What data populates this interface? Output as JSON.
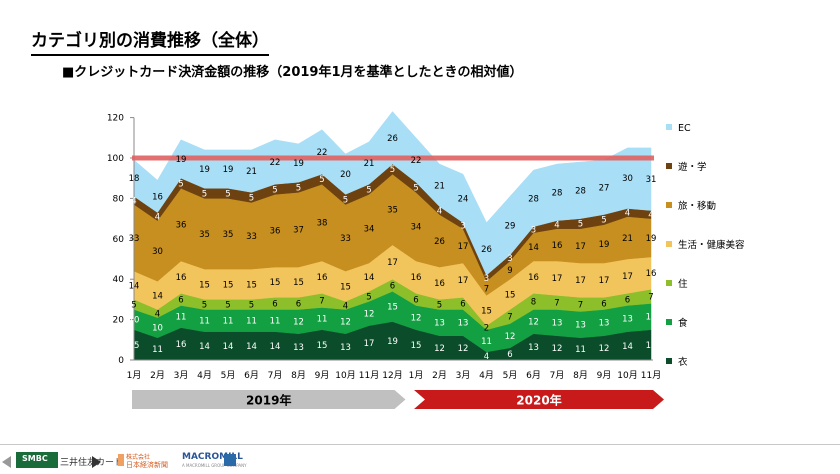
{
  "slide": {
    "title": "カテゴリ別の消費推移（全体）",
    "subtitle": "■クレジットカード決済金額の推移（2019年1月を基準としたときの相対値）"
  },
  "chart_data": {
    "type": "area",
    "stacked": true,
    "categories": [
      "1月",
      "2月",
      "3月",
      "4月",
      "5月",
      "6月",
      "7月",
      "8月",
      "9月",
      "10月",
      "11月",
      "12月",
      "1月",
      "2月",
      "3月",
      "4月",
      "5月",
      "6月",
      "7月",
      "8月",
      "9月",
      "10月",
      "11月"
    ],
    "year_bands": [
      {
        "label": "2019年",
        "start": 0,
        "end": 11,
        "color": "#c0c0c0"
      },
      {
        "label": "2020年",
        "start": 12,
        "end": 22,
        "color": "#c81a1a"
      }
    ],
    "ylim": [
      0,
      120
    ],
    "yticks": [
      0,
      20,
      40,
      60,
      80,
      100,
      120
    ],
    "reference_line": {
      "value": 100,
      "color": "#e06060"
    },
    "legend_position": "right",
    "series": [
      {
        "name": "衣",
        "color": "#0b4d2a",
        "label_color": "#ffffff",
        "values": [
          15,
          11,
          16,
          14,
          14,
          14,
          14,
          13,
          15,
          13,
          17,
          19,
          15,
          12,
          12,
          4,
          6,
          13,
          12,
          11,
          12,
          14,
          15
        ]
      },
      {
        "name": "食",
        "color": "#13a043",
        "label_color": "#ffffff",
        "values": [
          10,
          10,
          11,
          11,
          11,
          11,
          11,
          12,
          11,
          12,
          12,
          15,
          12,
          13,
          13,
          11,
          12,
          12,
          13,
          13,
          13,
          13,
          13
        ]
      },
      {
        "name": "住",
        "color": "#8cbf2a",
        "label_color": "#000000",
        "values": [
          5,
          4,
          6,
          5,
          5,
          5,
          6,
          6,
          7,
          4,
          5,
          6,
          6,
          5,
          6,
          2,
          7,
          8,
          7,
          7,
          6,
          6,
          7
        ]
      },
      {
        "name": "生活・健康美容",
        "color": "#f2c45c",
        "label_color": "#000000",
        "values": [
          14,
          14,
          16,
          15,
          15,
          15,
          15,
          15,
          16,
          15,
          14,
          17,
          16,
          16,
          17,
          15,
          15,
          16,
          17,
          17,
          17,
          17,
          16
        ]
      },
      {
        "name": "旅・移動",
        "color": "#c68f1f",
        "label_color": "#000000",
        "values": [
          33,
          30,
          36,
          35,
          35,
          33,
          36,
          37,
          38,
          33,
          34,
          35,
          34,
          26,
          17,
          7,
          9,
          14,
          16,
          17,
          19,
          21,
          19
        ]
      },
      {
        "name": "遊・学",
        "color": "#6e4210",
        "label_color": "#ffffff",
        "values": [
          4,
          4,
          5,
          5,
          5,
          5,
          5,
          5,
          5,
          5,
          5,
          5,
          5,
          4,
          3,
          3,
          3,
          3,
          4,
          5,
          5,
          4,
          4
        ]
      },
      {
        "name": "EC",
        "color": "#a8def6",
        "label_color": "#000000",
        "values": [
          18,
          16,
          19,
          19,
          19,
          21,
          22,
          19,
          22,
          20,
          21,
          26,
          22,
          21,
          24,
          26,
          29,
          28,
          28,
          28,
          27,
          30,
          31
        ]
      }
    ]
  },
  "footer": {
    "logo_smbc": "SMBC",
    "logo_mitsui": "三井住友カード",
    "logo_nikkei_top": "株式会社",
    "logo_nikkei_bottom": "日本経済新聞",
    "logo_macromill": "MACROMILL",
    "logo_macromill_sub": "A MACROMILL GROUP COMPANY"
  }
}
